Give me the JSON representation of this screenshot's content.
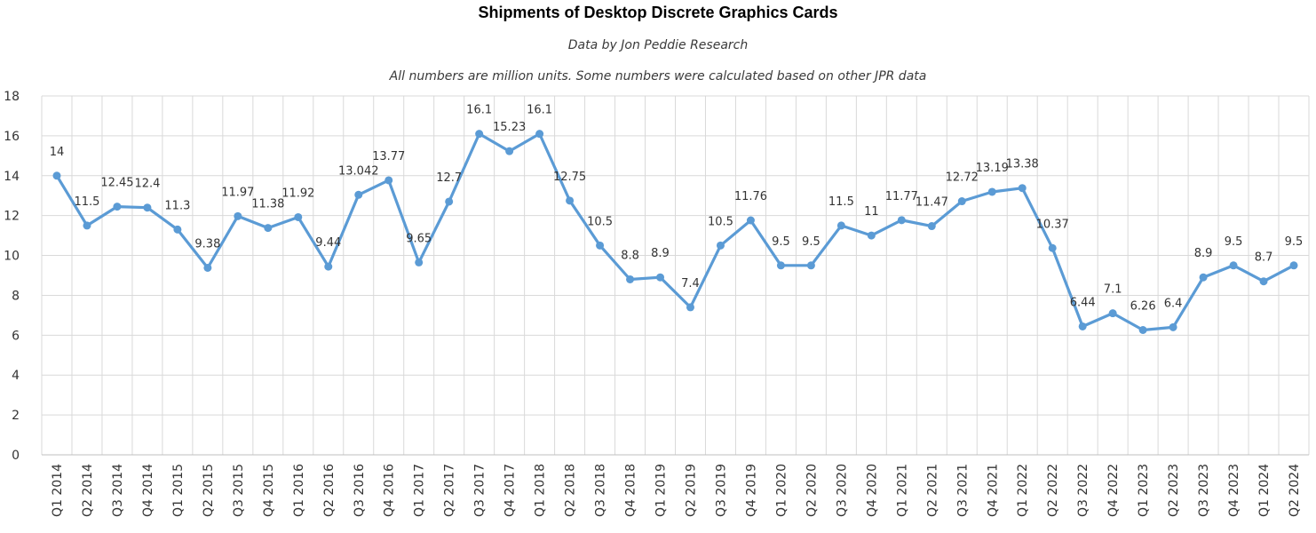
{
  "chart_data": {
    "type": "line",
    "title": "Shipments of Desktop Discrete Graphics Cards",
    "subtitle": "Data by Jon Peddie Research",
    "note": "All numbers are million units. Some numbers were calculated based on other JPR data",
    "ylim": [
      0,
      18
    ],
    "y_ticks": [
      0,
      2,
      4,
      6,
      8,
      10,
      12,
      14,
      16,
      18
    ],
    "grid": true,
    "line_color": "#5b9bd5",
    "categories": [
      "Q1 2014",
      "Q2 2014",
      "Q3 2014",
      "Q4 2014",
      "Q1 2015",
      "Q2 2015",
      "Q3 2015",
      "Q4 2015",
      "Q1 2016",
      "Q2 2016",
      "Q3 2016",
      "Q4 2016",
      "Q1 2017",
      "Q2 2017",
      "Q3 2017",
      "Q4 2017",
      "Q1 2018",
      "Q2 2018",
      "Q3 2018",
      "Q4 2018",
      "Q1 2019",
      "Q2 2019",
      "Q3 2019",
      "Q4 2019",
      "Q1 2020",
      "Q2 2020",
      "Q3 2020",
      "Q4 2020",
      "Q1 2021",
      "Q2 2021",
      "Q3 2021",
      "Q4 2021",
      "Q1 2022",
      "Q2 2022",
      "Q3 2022",
      "Q4 2022",
      "Q1 2023",
      "Q2 2023",
      "Q3 2023",
      "Q4 2023",
      "Q1 2024",
      "Q2 2024"
    ],
    "values": [
      14,
      11.5,
      12.45,
      12.4,
      11.3,
      9.38,
      11.97,
      11.38,
      11.92,
      9.44,
      13.042,
      13.77,
      9.65,
      12.7,
      16.1,
      15.23,
      16.1,
      12.75,
      10.5,
      8.8,
      8.9,
      7.4,
      10.5,
      11.76,
      9.5,
      9.5,
      11.5,
      11,
      11.77,
      11.47,
      12.72,
      13.19,
      13.38,
      10.37,
      6.44,
      7.1,
      6.26,
      6.4,
      8.9,
      9.5,
      8.7,
      9.5
    ],
    "data_labels": [
      "14",
      "11.5",
      "12.45",
      "12.4",
      "11.3",
      "9.38",
      "11.97",
      "11.38",
      "11.92",
      "9.44",
      "13.042",
      "13.77",
      "9.65",
      "12.7",
      "16.1",
      "15.23",
      "16.1",
      "12.75",
      "10.5",
      "8.8",
      "8.9",
      "7.4",
      "10.5",
      "11.76",
      "9.5",
      "9.5",
      "11.5",
      "11",
      "11.77",
      "11.47",
      "12.72",
      "13.19",
      "13.38",
      "10.37",
      "6.44",
      "7.1",
      "6.26",
      "6.4",
      "8.9",
      "9.5",
      "8.7",
      "9.5"
    ]
  }
}
